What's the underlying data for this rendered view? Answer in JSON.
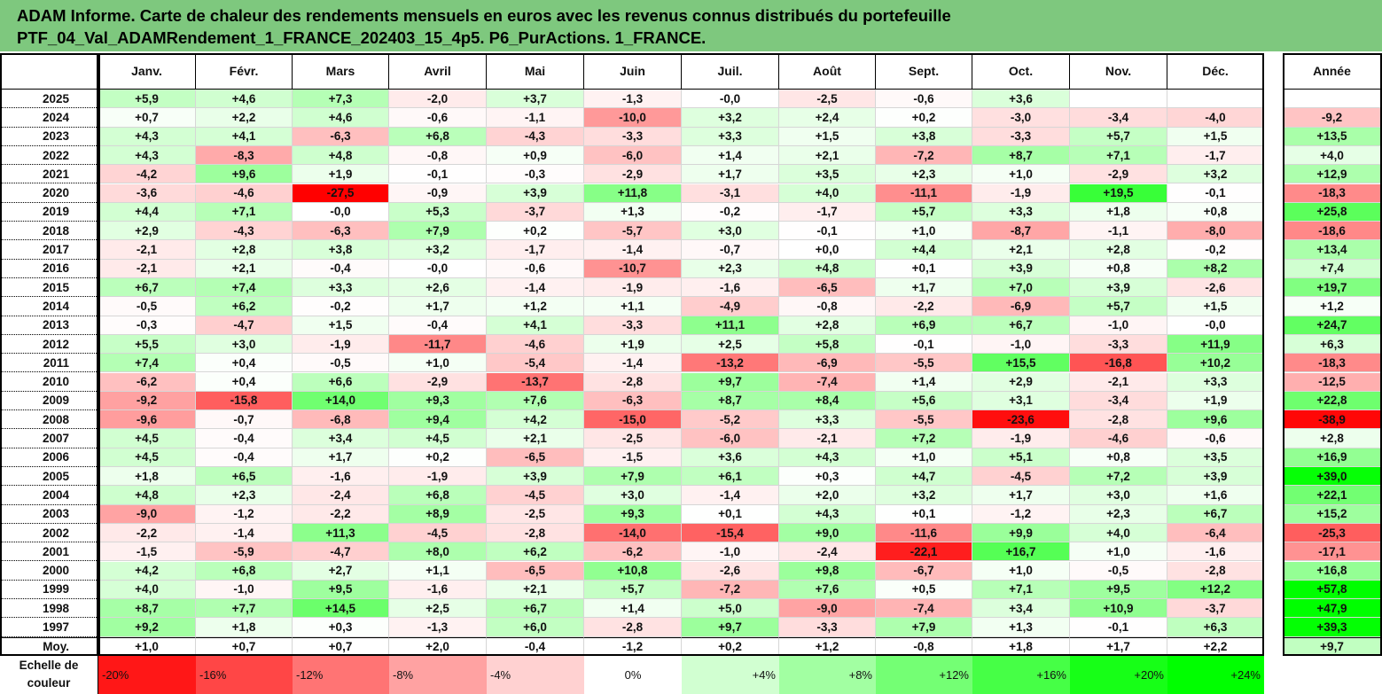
{
  "title": {
    "line1": "ADAM Informe. Carte de chaleur des rendements mensuels en euros avec les revenus connus distribués du portefeuille",
    "line2": "PTF_04_Val_ADAMRendement_1_FRANCE_202403_15_4p5. P6_PurActions. 1_FRANCE."
  },
  "corner_text": "",
  "year_label": "Année",
  "avg_label": "Moy.",
  "scale_label": [
    "Echelle de",
    "couleur"
  ],
  "colors": {
    "title_bg": "#7ec87e",
    "negative_max": "#ff0000",
    "positive_max": "#00ff00",
    "neutral": "#ffffff"
  },
  "chart_data": {
    "type": "heatmap",
    "title": "ADAM Informe. Carte de chaleur des rendements mensuels en euros avec les revenus connus distribués du portefeuille",
    "columns": [
      "Janv.",
      "Févr.",
      "Mars",
      "Avril",
      "Mai",
      "Juin",
      "Juil.",
      "Août",
      "Sept.",
      "Oct.",
      "Nov.",
      "Déc."
    ],
    "rows": [
      {
        "year": "2025",
        "values": [
          "+5,9",
          "+4,6",
          "+7,3",
          "-2,0",
          "+3,7",
          "-1,3",
          "-0,0",
          "-2,5",
          "-0,6",
          "+3,6",
          "",
          ""
        ],
        "annual": ""
      },
      {
        "year": "2024",
        "values": [
          "+0,7",
          "+2,2",
          "+4,6",
          "-0,6",
          "-1,1",
          "-10,0",
          "+3,2",
          "+2,4",
          "+0,2",
          "-3,0",
          "-3,4",
          "-4,0"
        ],
        "annual": "-9,2"
      },
      {
        "year": "2023",
        "values": [
          "+4,3",
          "+4,1",
          "-6,3",
          "+6,8",
          "-4,3",
          "-3,3",
          "+3,3",
          "+1,5",
          "+3,8",
          "-3,3",
          "+5,7",
          "+1,5"
        ],
        "annual": "+13,5"
      },
      {
        "year": "2022",
        "values": [
          "+4,3",
          "-8,3",
          "+4,8",
          "-0,8",
          "+0,9",
          "-6,0",
          "+1,4",
          "+2,1",
          "-7,2",
          "+8,7",
          "+7,1",
          "-1,7"
        ],
        "annual": "+4,0"
      },
      {
        "year": "2021",
        "values": [
          "-4,2",
          "+9,6",
          "+1,9",
          "-0,1",
          "-0,3",
          "-2,9",
          "+1,7",
          "+3,5",
          "+2,3",
          "+1,0",
          "-2,9",
          "+3,2"
        ],
        "annual": "+12,9"
      },
      {
        "year": "2020",
        "values": [
          "-3,6",
          "-4,6",
          "-27,5",
          "-0,9",
          "+3,9",
          "+11,8",
          "-3,1",
          "+4,0",
          "-11,1",
          "-1,9",
          "+19,5",
          "-0,1"
        ],
        "annual": "-18,3"
      },
      {
        "year": "2019",
        "values": [
          "+4,4",
          "+7,1",
          "-0,0",
          "+5,3",
          "-3,7",
          "+1,3",
          "-0,2",
          "-1,7",
          "+5,7",
          "+3,3",
          "+1,8",
          "+0,8"
        ],
        "annual": "+25,8"
      },
      {
        "year": "2018",
        "values": [
          "+2,9",
          "-4,3",
          "-6,3",
          "+7,9",
          "+0,2",
          "-5,7",
          "+3,0",
          "-0,1",
          "+1,0",
          "-8,7",
          "-1,1",
          "-8,0"
        ],
        "annual": "-18,6"
      },
      {
        "year": "2017",
        "values": [
          "-2,1",
          "+2,8",
          "+3,8",
          "+3,2",
          "-1,7",
          "-1,4",
          "-0,7",
          "+0,0",
          "+4,4",
          "+2,1",
          "+2,8",
          "-0,2"
        ],
        "annual": "+13,4"
      },
      {
        "year": "2016",
        "values": [
          "-2,1",
          "+2,1",
          "-0,4",
          "-0,0",
          "-0,6",
          "-10,7",
          "+2,3",
          "+4,8",
          "+0,1",
          "+3,9",
          "+0,8",
          "+8,2"
        ],
        "annual": "+7,4"
      },
      {
        "year": "2015",
        "values": [
          "+6,7",
          "+7,4",
          "+3,3",
          "+2,6",
          "-1,4",
          "-1,9",
          "-1,6",
          "-6,5",
          "+1,7",
          "+7,0",
          "+3,9",
          "-2,6"
        ],
        "annual": "+19,7"
      },
      {
        "year": "2014",
        "values": [
          "-0,5",
          "+6,2",
          "-0,2",
          "+1,7",
          "+1,2",
          "+1,1",
          "-4,9",
          "-0,8",
          "-2,2",
          "-6,9",
          "+5,7",
          "+1,5"
        ],
        "annual": "+1,2"
      },
      {
        "year": "2013",
        "values": [
          "-0,3",
          "-4,7",
          "+1,5",
          "-0,4",
          "+4,1",
          "-3,3",
          "+11,1",
          "+2,8",
          "+6,9",
          "+6,7",
          "-1,0",
          "-0,0"
        ],
        "annual": "+24,7"
      },
      {
        "year": "2012",
        "values": [
          "+5,5",
          "+3,0",
          "-1,9",
          "-11,7",
          "-4,6",
          "+1,9",
          "+2,5",
          "+5,8",
          "-0,1",
          "-1,0",
          "-3,3",
          "+11,9"
        ],
        "annual": "+6,3"
      },
      {
        "year": "2011",
        "values": [
          "+7,4",
          "+0,4",
          "-0,5",
          "+1,0",
          "-5,4",
          "-1,4",
          "-13,2",
          "-6,9",
          "-5,5",
          "+15,5",
          "-16,8",
          "+10,2"
        ],
        "annual": "-18,3"
      },
      {
        "year": "2010",
        "values": [
          "-6,2",
          "+0,4",
          "+6,6",
          "-2,9",
          "-13,7",
          "-2,8",
          "+9,7",
          "-7,4",
          "+1,4",
          "+2,9",
          "-2,1",
          "+3,3"
        ],
        "annual": "-12,5"
      },
      {
        "year": "2009",
        "values": [
          "-9,2",
          "-15,8",
          "+14,0",
          "+9,3",
          "+7,6",
          "-6,3",
          "+8,7",
          "+8,4",
          "+5,6",
          "+3,1",
          "-3,4",
          "+1,9"
        ],
        "annual": "+22,8"
      },
      {
        "year": "2008",
        "values": [
          "-9,6",
          "-0,7",
          "-6,8",
          "+9,4",
          "+4,2",
          "-15,0",
          "-5,2",
          "+3,3",
          "-5,5",
          "-23,6",
          "-2,8",
          "+9,6"
        ],
        "annual": "-38,9"
      },
      {
        "year": "2007",
        "values": [
          "+4,5",
          "-0,4",
          "+3,4",
          "+4,5",
          "+2,1",
          "-2,5",
          "-6,0",
          "-2,1",
          "+7,2",
          "-1,9",
          "-4,6",
          "-0,6"
        ],
        "annual": "+2,8"
      },
      {
        "year": "2006",
        "values": [
          "+4,5",
          "-0,4",
          "+1,7",
          "+0,2",
          "-6,5",
          "-1,5",
          "+3,6",
          "+4,3",
          "+1,0",
          "+5,1",
          "+0,8",
          "+3,5"
        ],
        "annual": "+16,9"
      },
      {
        "year": "2005",
        "values": [
          "+1,8",
          "+6,5",
          "-1,6",
          "-1,9",
          "+3,9",
          "+7,9",
          "+6,1",
          "+0,3",
          "+4,7",
          "-4,5",
          "+7,2",
          "+3,9"
        ],
        "annual": "+39,0"
      },
      {
        "year": "2004",
        "values": [
          "+4,8",
          "+2,3",
          "-2,4",
          "+6,8",
          "-4,5",
          "+3,0",
          "-1,4",
          "+2,0",
          "+3,2",
          "+1,7",
          "+3,0",
          "+1,6"
        ],
        "annual": "+22,1"
      },
      {
        "year": "2003",
        "values": [
          "-9,0",
          "-1,2",
          "-2,2",
          "+8,9",
          "-2,5",
          "+9,3",
          "+0,1",
          "+4,3",
          "+0,1",
          "-1,2",
          "+2,3",
          "+6,7"
        ],
        "annual": "+15,2"
      },
      {
        "year": "2002",
        "values": [
          "-2,2",
          "-1,4",
          "+11,3",
          "-4,5",
          "-2,8",
          "-14,0",
          "-15,4",
          "+9,0",
          "-11,6",
          "+9,9",
          "+4,0",
          "-6,4"
        ],
        "annual": "-25,3"
      },
      {
        "year": "2001",
        "values": [
          "-1,5",
          "-5,9",
          "-4,7",
          "+8,0",
          "+6,2",
          "-6,2",
          "-1,0",
          "-2,4",
          "-22,1",
          "+16,7",
          "+1,0",
          "-1,6"
        ],
        "annual": "-17,1"
      },
      {
        "year": "2000",
        "values": [
          "+4,2",
          "+6,8",
          "+2,7",
          "+1,1",
          "-6,5",
          "+10,8",
          "-2,6",
          "+9,8",
          "-6,7",
          "+1,0",
          "-0,5",
          "-2,8"
        ],
        "annual": "+16,8"
      },
      {
        "year": "1999",
        "values": [
          "+4,0",
          "-1,0",
          "+9,5",
          "-1,6",
          "+2,1",
          "+5,7",
          "-7,2",
          "+7,6",
          "+0,5",
          "+7,1",
          "+9,5",
          "+12,2"
        ],
        "annual": "+57,8"
      },
      {
        "year": "1998",
        "values": [
          "+8,7",
          "+7,7",
          "+14,5",
          "+2,5",
          "+6,7",
          "+1,4",
          "+5,0",
          "-9,0",
          "-7,4",
          "+3,4",
          "+10,9",
          "-3,7"
        ],
        "annual": "+47,9"
      },
      {
        "year": "1997",
        "values": [
          "+9,2",
          "+1,8",
          "+0,3",
          "-1,3",
          "+6,0",
          "-2,8",
          "+9,7",
          "-3,3",
          "+7,9",
          "+1,3",
          "-0,1",
          "+6,3"
        ],
        "annual": "+39,3"
      }
    ],
    "average": {
      "values": [
        "+1,0",
        "+0,7",
        "+0,7",
        "+2,0",
        "-0,4",
        "-1,2",
        "+0,2",
        "+1,2",
        "-0,8",
        "+1,8",
        "+1,7",
        "+2,2"
      ],
      "annual": "+9,7"
    },
    "scale": [
      "-20%",
      "-16%",
      "-12%",
      "-8%",
      "-4%",
      "0%",
      "+4%",
      "+8%",
      "+12%",
      "+16%",
      "+20%",
      "+24%"
    ],
    "scale_annual": ""
  }
}
